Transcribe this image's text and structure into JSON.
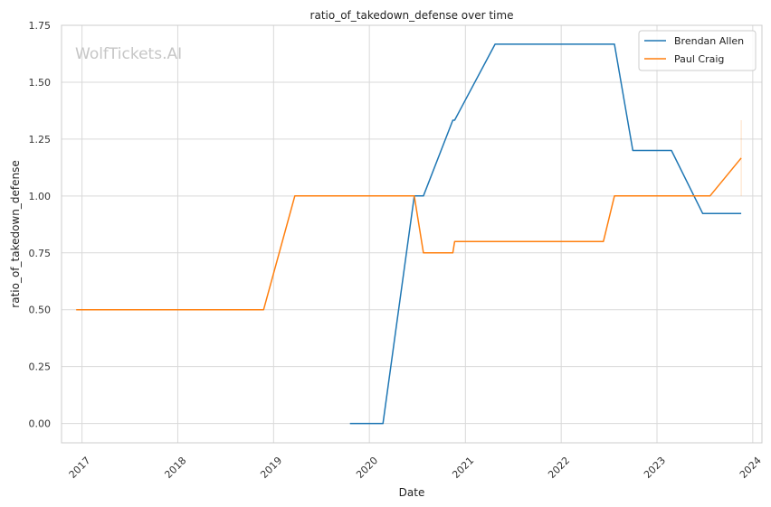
{
  "chart_data": {
    "type": "line",
    "title": "ratio_of_takedown_defense over time",
    "xlabel": "Date",
    "ylabel": "ratio_of_takedown_defense",
    "watermark": "WolfTickets.AI",
    "xlim": [
      "2016-10-15",
      "2024-02-05"
    ],
    "ylim": [
      -0.085,
      1.75
    ],
    "x_ticks": [
      "2017",
      "2018",
      "2019",
      "2020",
      "2021",
      "2022",
      "2023",
      "2024"
    ],
    "y_ticks": [
      "0.00",
      "0.25",
      "0.50",
      "0.75",
      "1.00",
      "1.25",
      "1.50",
      "1.75"
    ],
    "grid": true,
    "legend_position": "top-right",
    "series": [
      {
        "name": "Brendan Allen",
        "color": "#1f77b4",
        "points": [
          [
            "2019-10-19",
            0.0
          ],
          [
            "2020-02-22",
            0.0
          ],
          [
            "2020-06-20",
            1.0
          ],
          [
            "2020-07-25",
            1.0
          ],
          [
            "2020-11-14",
            1.333
          ],
          [
            "2020-11-21",
            1.333
          ],
          [
            "2021-04-24",
            1.667
          ],
          [
            "2022-07-23",
            1.667
          ],
          [
            "2022-10-01",
            1.2
          ],
          [
            "2023-02-25",
            1.2
          ],
          [
            "2023-06-24",
            0.923
          ],
          [
            "2023-11-18",
            0.923
          ]
        ]
      },
      {
        "name": "Paul Craig",
        "color": "#ff7f0e",
        "points": [
          [
            "2016-12-10",
            0.5
          ],
          [
            "2018-11-24",
            0.5
          ],
          [
            "2019-03-23",
            1.0
          ],
          [
            "2020-06-20",
            1.0
          ],
          [
            "2020-07-25",
            0.75
          ],
          [
            "2020-11-14",
            0.75
          ],
          [
            "2020-11-21",
            0.8
          ],
          [
            "2022-06-11",
            0.8
          ],
          [
            "2022-07-23",
            1.0
          ],
          [
            "2023-07-22",
            1.0
          ],
          [
            "2023-11-18",
            1.167
          ]
        ],
        "whisker": {
          "x": "2023-11-18",
          "low": 1.0,
          "high": 1.333
        }
      }
    ]
  }
}
